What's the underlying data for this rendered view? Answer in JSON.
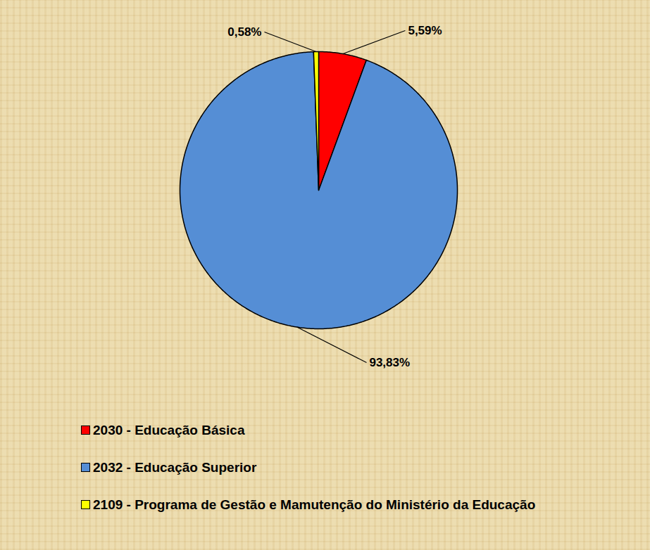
{
  "chart_data": {
    "type": "pie",
    "categories": [
      "2030 - Educação Básica",
      "2032 - Educação Superior",
      "2109 - Programa de Gestão e Mamutenção do Ministério da Educação"
    ],
    "values": [
      5.59,
      93.83,
      0.58
    ],
    "value_labels": [
      "5,59%",
      "93,83%",
      "0,58%"
    ],
    "colors": [
      "#ff0000",
      "#558ed5",
      "#ffff00"
    ],
    "data_labels": true,
    "legend": "bottom-left"
  }
}
